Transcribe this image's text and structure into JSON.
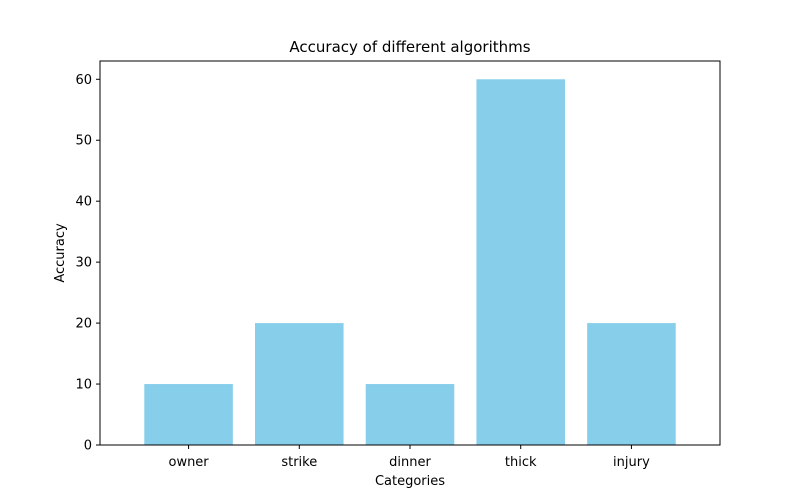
{
  "chart_data": {
    "type": "bar",
    "title": "Accuracy of different algorithms",
    "xlabel": "Categories",
    "ylabel": "Accuracy",
    "categories": [
      "owner",
      "strike",
      "dinner",
      "thick",
      "injury"
    ],
    "values": [
      10,
      20,
      10,
      60,
      20
    ],
    "ylim": [
      0,
      63
    ],
    "yticks": [
      0,
      10,
      20,
      30,
      40,
      50,
      60
    ],
    "grid": false,
    "bar_color": "#87CEEB"
  }
}
